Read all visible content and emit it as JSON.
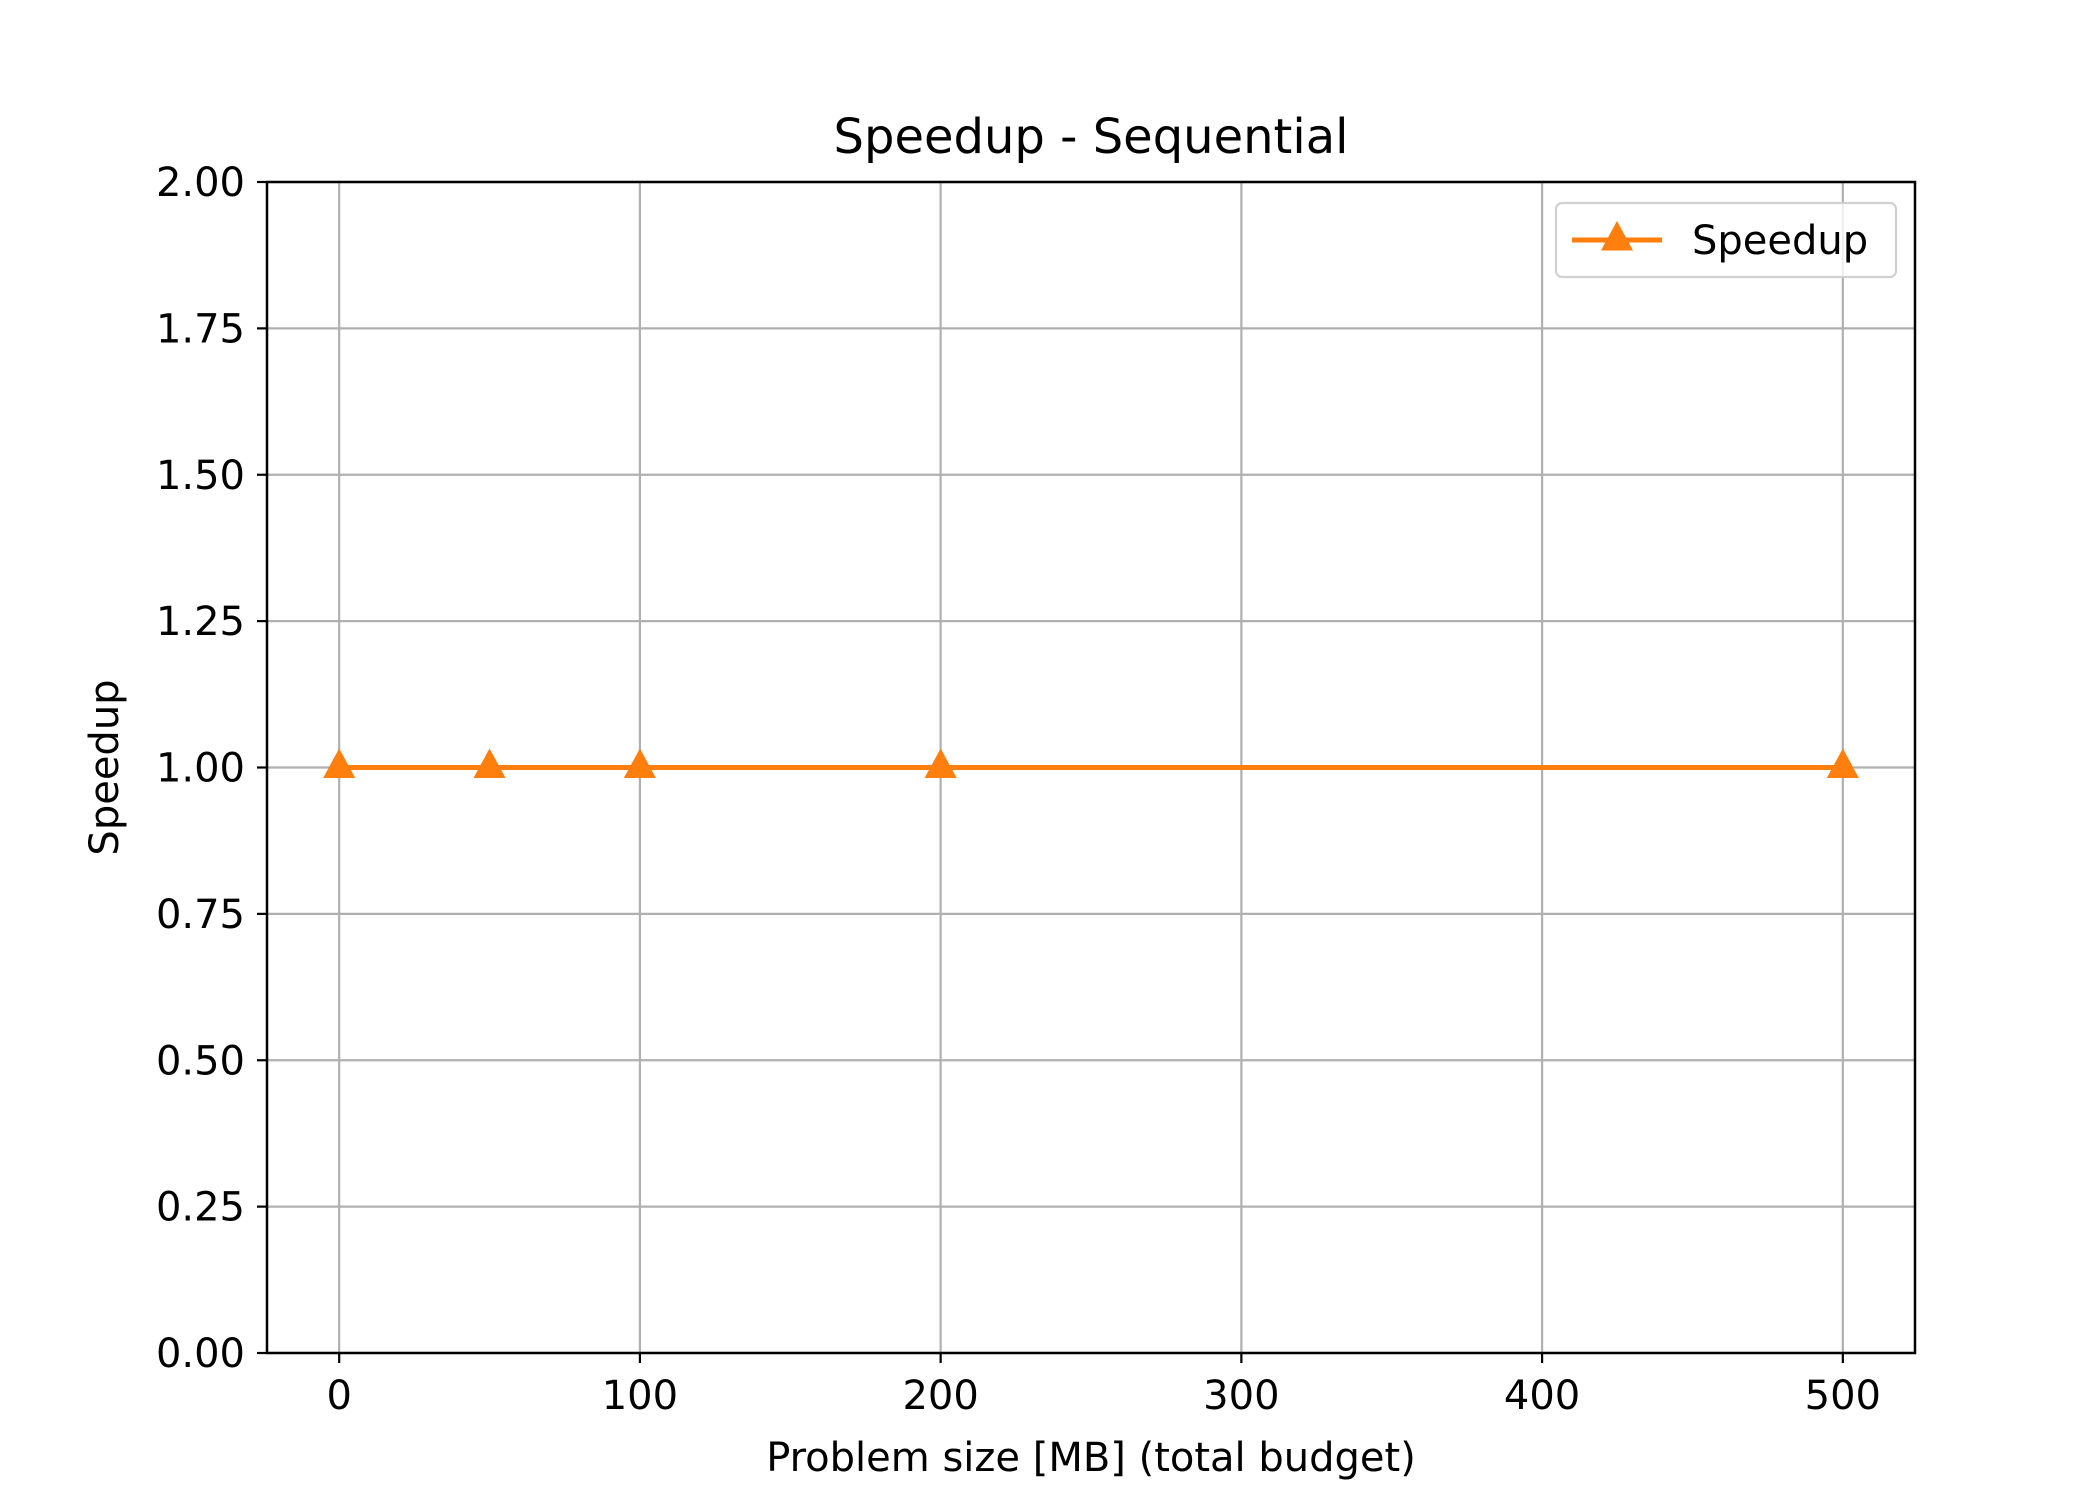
{
  "chart_data": {
    "type": "line",
    "title": "Speedup - Sequential",
    "xlabel": "Problem size [MB] (total budget)",
    "ylabel": "Speedup",
    "xlim": [
      -24,
      524
    ],
    "ylim": [
      0,
      2.0
    ],
    "xticks": [
      0,
      100,
      200,
      300,
      400,
      500
    ],
    "xtick_labels": [
      "0",
      "100",
      "200",
      "300",
      "400",
      "500"
    ],
    "yticks": [
      0,
      0.25,
      0.5,
      0.75,
      1.0,
      1.25,
      1.5,
      1.75,
      2.0
    ],
    "ytick_labels": [
      "0.00",
      "0.25",
      "0.50",
      "0.75",
      "1.00",
      "1.25",
      "1.50",
      "1.75",
      "2.00"
    ],
    "grid": true,
    "legend_position": "top-right",
    "series": [
      {
        "name": "Speedup",
        "color": "#ff7f0e",
        "marker": "triangle-up",
        "x": [
          0,
          50,
          100,
          200,
          500
        ],
        "y": [
          1.0,
          1.0,
          1.0,
          1.0,
          1.0
        ]
      }
    ]
  }
}
